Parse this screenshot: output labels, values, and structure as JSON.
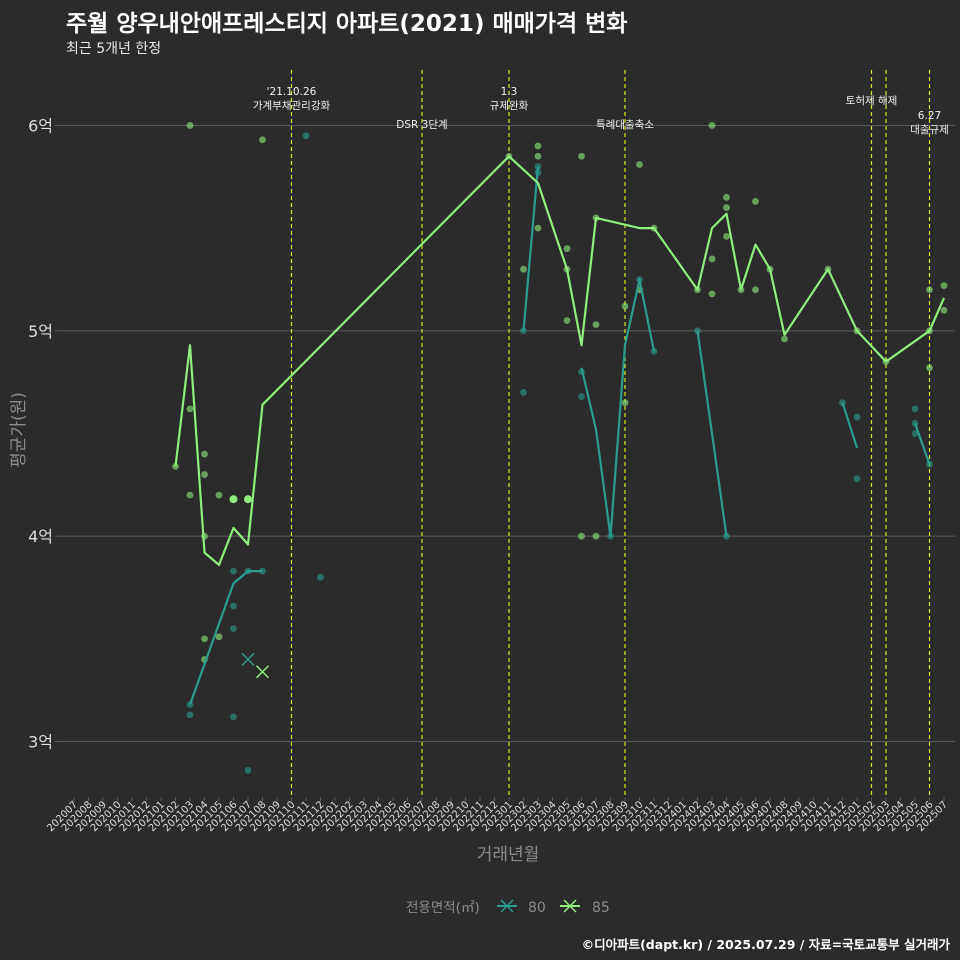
{
  "title": "주월 양우내안애프레스티지 아파트(2021) 매매가격 변화",
  "subtitle": "최근 5개년 한정",
  "caption": "©디아파트(dapt.kr) / 2025.07.29 / 자료=국토교통부 실거래가",
  "colors": {
    "background": "#2b2b2b",
    "grid": "#5a5a5a",
    "vline": "#d9e021",
    "s80": "#2a9d8f",
    "s85": "#90ee7e",
    "text": "#ffffff",
    "axis_title": "#8c8c8c",
    "tick": "#dddddd"
  },
  "chart_data": {
    "type": "line",
    "xlabel": "거래년월",
    "ylabel": "평균가(원)",
    "ylim": [
      2.73,
      6.27
    ],
    "yticks": [
      {
        "value": 3,
        "label": "3억"
      },
      {
        "value": 4,
        "label": "4억"
      },
      {
        "value": 5,
        "label": "5억"
      },
      {
        "value": 6,
        "label": "6억"
      }
    ],
    "categories": [
      "202007",
      "202008",
      "202009",
      "202010",
      "202011",
      "202012",
      "202101",
      "202102",
      "202103",
      "202104",
      "202105",
      "202106",
      "202107",
      "202108",
      "202109",
      "202110",
      "202111",
      "202112",
      "202201",
      "202202",
      "202203",
      "202204",
      "202205",
      "202206",
      "202207",
      "202208",
      "202209",
      "202210",
      "202211",
      "202212",
      "202301",
      "202302",
      "202303",
      "202304",
      "202305",
      "202306",
      "202307",
      "202308",
      "202309",
      "202310",
      "202311",
      "202312",
      "202401",
      "202402",
      "202403",
      "202404",
      "202405",
      "202406",
      "202407",
      "202408",
      "202409",
      "202410",
      "202411",
      "202412",
      "202501",
      "202502",
      "202503",
      "202504",
      "202505",
      "202506",
      "202507"
    ],
    "legend": {
      "title": "전용면적(㎡)",
      "items": [
        "80",
        "85"
      ]
    },
    "series": [
      {
        "name": "80",
        "segments": [
          [
            [
              "202103",
              3.18
            ],
            [
              "202106",
              3.77
            ],
            [
              "202107",
              3.83
            ],
            [
              "202108",
              3.83
            ]
          ],
          [
            [
              "202302",
              5.0
            ],
            [
              "202303",
              5.8
            ]
          ],
          [
            [
              "202306",
              4.82
            ],
            [
              "202307",
              4.52
            ],
            [
              "202308",
              4.0
            ],
            [
              "202309",
              4.93
            ],
            [
              "202310",
              5.25
            ],
            [
              "202311",
              4.9
            ]
          ],
          [
            [
              "202402",
              5.0
            ],
            [
              "202404",
              4.0
            ]
          ],
          [
            [
              "202412",
              4.65
            ],
            [
              "202501",
              4.43
            ]
          ],
          [
            [
              "202505",
              4.55
            ],
            [
              "202506",
              4.35
            ]
          ]
        ],
        "points": [
          [
            "202103",
            3.18
          ],
          [
            "202103",
            3.13
          ],
          [
            "202106",
            3.83
          ],
          [
            "202106",
            3.66
          ],
          [
            "202106",
            3.55
          ],
          [
            "202106",
            3.12
          ],
          [
            "202107",
            3.83
          ],
          [
            "202107",
            2.86
          ],
          [
            "202108",
            3.83
          ],
          [
            "202111",
            5.95
          ],
          [
            "202112",
            3.8
          ],
          [
            "202302",
            5.0
          ],
          [
            "202302",
            4.7
          ],
          [
            "202303",
            5.8
          ],
          [
            "202303",
            5.77
          ],
          [
            "202306",
            4.8
          ],
          [
            "202306",
            4.68
          ],
          [
            "202308",
            4.0
          ],
          [
            "202310",
            5.25
          ],
          [
            "202311",
            4.9
          ],
          [
            "202402",
            5.0
          ],
          [
            "202404",
            4.0
          ],
          [
            "202412",
            4.65
          ],
          [
            "202501",
            4.58
          ],
          [
            "202501",
            4.28
          ],
          [
            "202505",
            4.62
          ],
          [
            "202505",
            4.55
          ],
          [
            "202505",
            4.5
          ],
          [
            "202506",
            4.35
          ]
        ],
        "x_markers": [
          [
            "202107",
            3.4
          ]
        ]
      },
      {
        "name": "85",
        "segments": [
          [
            [
              "202102",
              4.34
            ],
            [
              "202103",
              4.93
            ],
            [
              "202104",
              3.92
            ],
            [
              "202105",
              3.86
            ],
            [
              "202106",
              4.04
            ],
            [
              "202107",
              3.96
            ],
            [
              "202108",
              4.64
            ],
            [
              "202301",
              5.85
            ],
            [
              "202303",
              5.72
            ],
            [
              "202305",
              5.3
            ],
            [
              "202306",
              4.93
            ],
            [
              "202307",
              5.55
            ],
            [
              "202310",
              5.5
            ],
            [
              "202311",
              5.5
            ],
            [
              "202402",
              5.2
            ],
            [
              "202403",
              5.5
            ],
            [
              "202404",
              5.57
            ],
            [
              "202405",
              5.2
            ],
            [
              "202406",
              5.42
            ],
            [
              "202407",
              5.3
            ],
            [
              "202408",
              4.98
            ],
            [
              "202411",
              5.3
            ],
            [
              "202501",
              5.0
            ],
            [
              "202503",
              4.85
            ],
            [
              "202506",
              5.0
            ],
            [
              "202507",
              5.16
            ]
          ]
        ],
        "points": [
          [
            "202102",
            4.34
          ],
          [
            "202103",
            6.0
          ],
          [
            "202103",
            4.62
          ],
          [
            "202103",
            4.2
          ],
          [
            "202104",
            4.4
          ],
          [
            "202104",
            4.3
          ],
          [
            "202104",
            4.0
          ],
          [
            "202104",
            3.5
          ],
          [
            "202104",
            3.4
          ],
          [
            "202105",
            4.2
          ],
          [
            "202105",
            3.51
          ],
          [
            "202106",
            4.18
          ],
          [
            "202107",
            4.18
          ],
          [
            "202108",
            5.93
          ],
          [
            "202301",
            5.85
          ],
          [
            "202302",
            5.3
          ],
          [
            "202303",
            5.9
          ],
          [
            "202303",
            5.85
          ],
          [
            "202303",
            5.5
          ],
          [
            "202305",
            5.4
          ],
          [
            "202305",
            5.3
          ],
          [
            "202305",
            5.05
          ],
          [
            "202306",
            5.85
          ],
          [
            "202306",
            4.0
          ],
          [
            "202307",
            5.55
          ],
          [
            "202307",
            5.03
          ],
          [
            "202307",
            4.0
          ],
          [
            "202309",
            5.12
          ],
          [
            "202309",
            4.65
          ],
          [
            "202310",
            5.81
          ],
          [
            "202310",
            5.2
          ],
          [
            "202311",
            5.5
          ],
          [
            "202402",
            5.2
          ],
          [
            "202403",
            6.0
          ],
          [
            "202403",
            5.35
          ],
          [
            "202403",
            5.18
          ],
          [
            "202404",
            5.65
          ],
          [
            "202404",
            5.6
          ],
          [
            "202404",
            5.46
          ],
          [
            "202405",
            5.2
          ],
          [
            "202406",
            5.63
          ],
          [
            "202406",
            5.2
          ],
          [
            "202407",
            5.3
          ],
          [
            "202408",
            4.96
          ],
          [
            "202411",
            5.3
          ],
          [
            "202501",
            5.0
          ],
          [
            "202503",
            4.85
          ],
          [
            "202506",
            5.2
          ],
          [
            "202506",
            5.0
          ],
          [
            "202506",
            4.82
          ],
          [
            "202507",
            5.22
          ],
          [
            "202507",
            5.1
          ]
        ],
        "x_markers": [
          [
            "202108",
            3.34
          ]
        ]
      }
    ],
    "annotations": [
      {
        "x": "202110",
        "lines": [
          "'21.10.26",
          "가계부채관리강화"
        ]
      },
      {
        "x": "202207",
        "lines": [
          "DSR 3단계"
        ]
      },
      {
        "x": "202301",
        "lines": [
          "1.3",
          "규제완화"
        ]
      },
      {
        "x": "202309",
        "lines": [
          "특례대출축소"
        ]
      },
      {
        "x": "202502",
        "lines": [
          "토허제 해제"
        ]
      },
      {
        "x": "202503",
        "lines": []
      },
      {
        "x": "202506",
        "lines": [
          "6.27",
          "대출규제"
        ]
      }
    ]
  }
}
